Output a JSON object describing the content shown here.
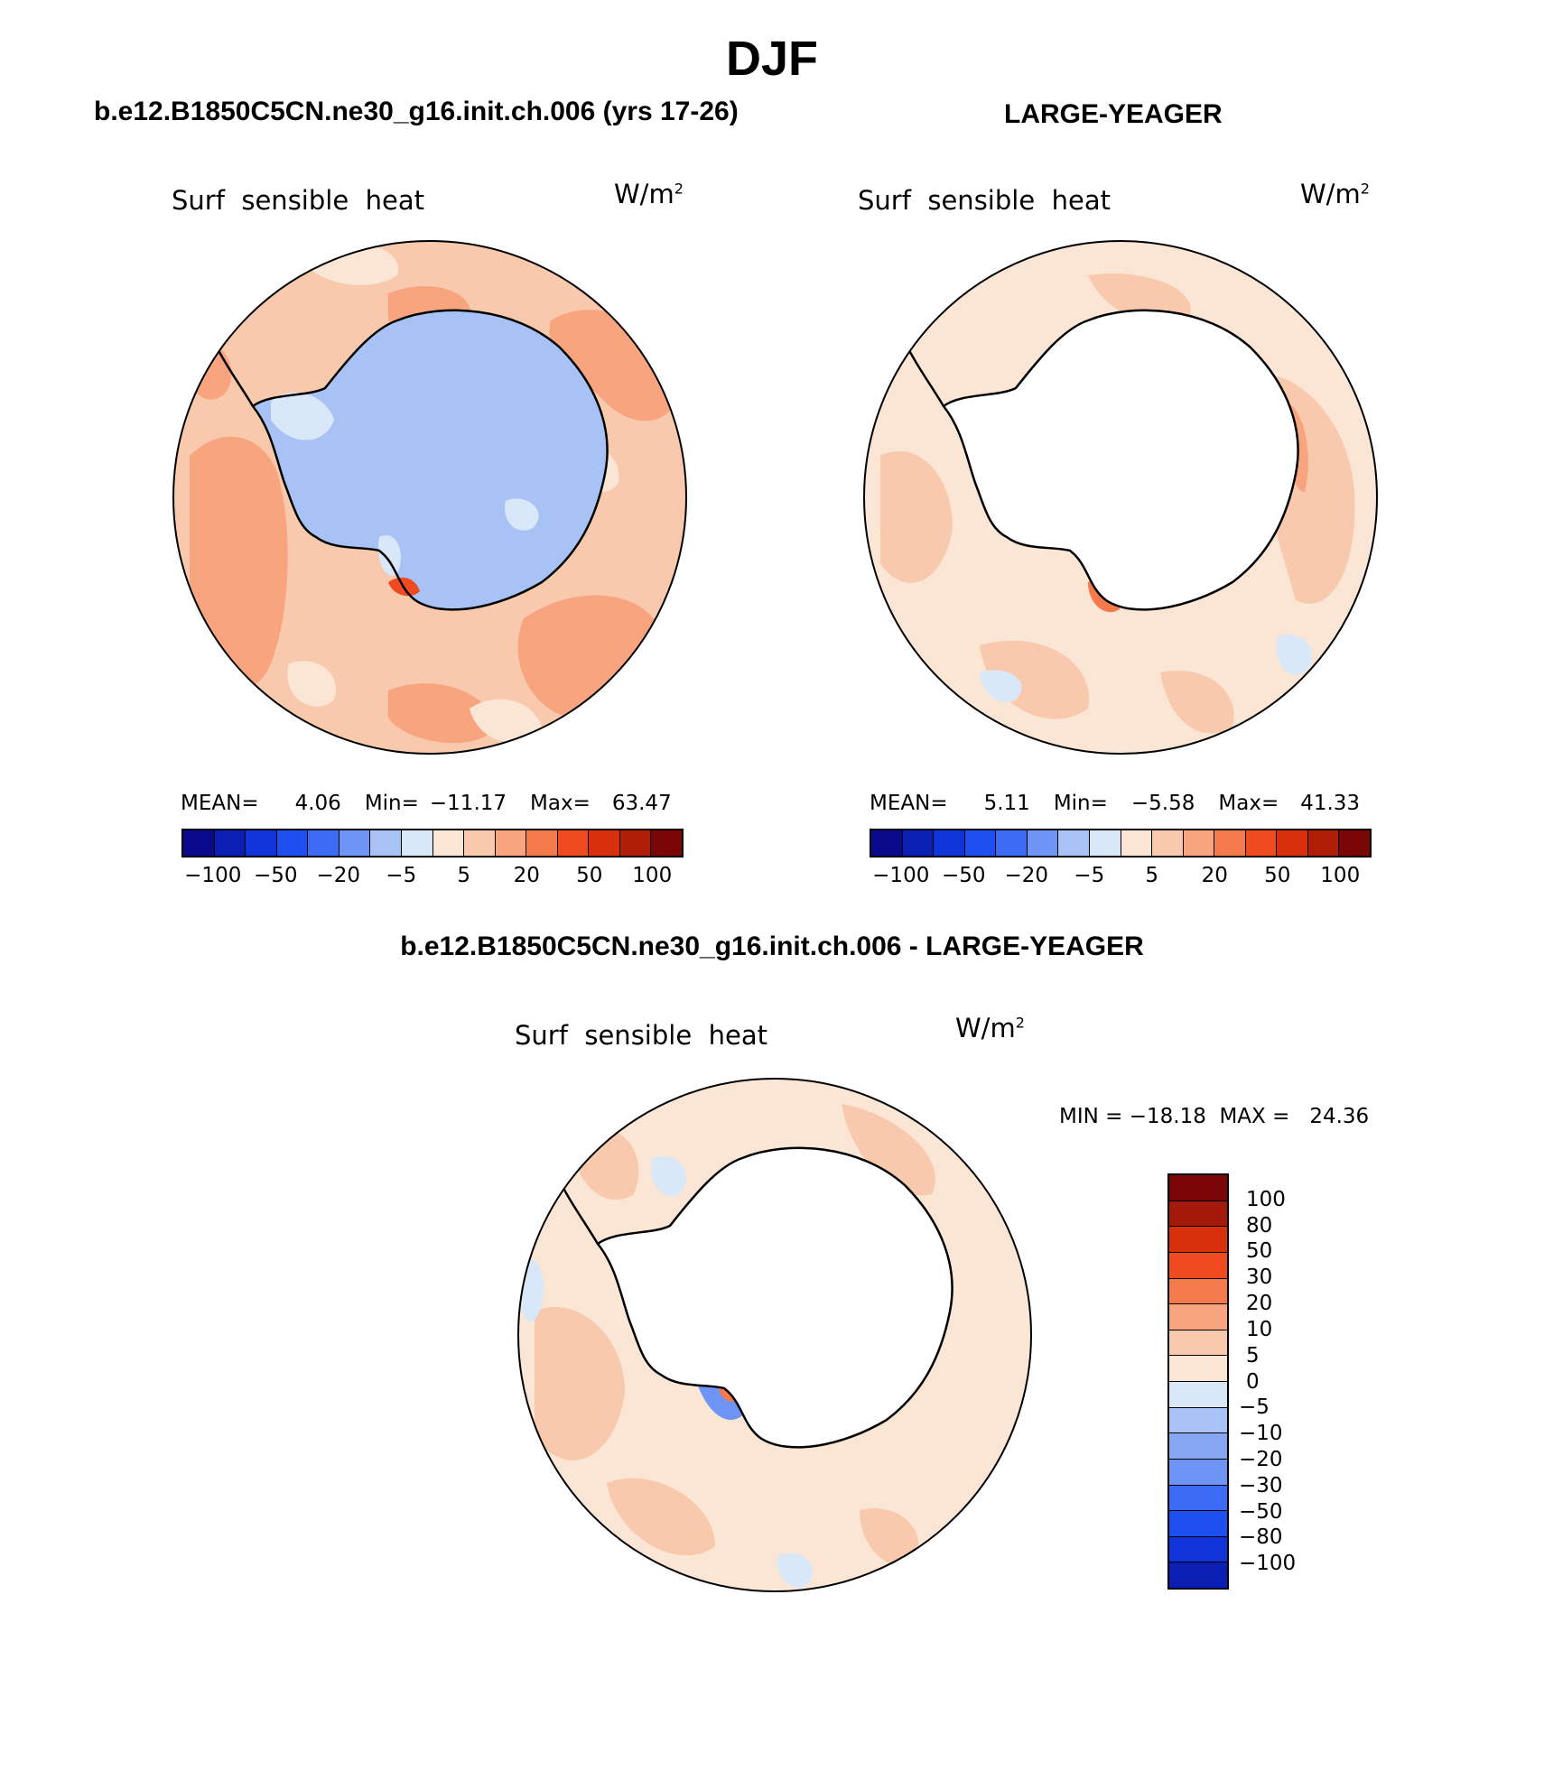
{
  "figure": {
    "title": "DJF"
  },
  "panels": [
    {
      "id": "p1",
      "header": "b.e12.B1850C5CN.ne30_g16.init.ch.006 (yrs 17-26)",
      "variable": "Surf  sensible  heat",
      "units_base": "W/m",
      "units_exp": "2",
      "stats": {
        "mean_label": "MEAN=",
        "mean": "4.06",
        "min_label": "Min=",
        "min": "−11.17",
        "max_label": "Max=",
        "max": "63.47"
      }
    },
    {
      "id": "p2",
      "header": "LARGE-YEAGER",
      "variable": "Surf  sensible  heat",
      "units_base": "W/m",
      "units_exp": "2",
      "stats": {
        "mean_label": "MEAN=",
        "mean": "5.11",
        "min_label": "Min=",
        "min": "−5.58",
        "max_label": "Max=",
        "max": "41.33"
      }
    },
    {
      "id": "p3",
      "header": "b.e12.B1850C5CN.ne30_g16.init.ch.006 - LARGE-YEAGER",
      "variable": "Surf  sensible  heat",
      "units_base": "W/m",
      "units_exp": "2",
      "minmax": "MIN = −18.18  MAX =   24.36"
    }
  ],
  "colorbar_horizontal": {
    "colors": [
      "#0a0a8c",
      "#0a1fb4",
      "#0f35d8",
      "#1e50f0",
      "#3c6cf5",
      "#6e95f5",
      "#a8c2f5",
      "#d8e8f8",
      "#fbe6d6",
      "#f8c9ac",
      "#f7a47f",
      "#f47a4c",
      "#f04b20",
      "#d8300c",
      "#b01e08",
      "#7a0606"
    ],
    "labels": [
      "−100",
      "−50",
      "−20",
      "−5",
      "5",
      "20",
      "50",
      "100"
    ]
  },
  "colorbar_vertical": {
    "colors": [
      "#7a0606",
      "#a31a0a",
      "#d8300c",
      "#f04b20",
      "#f47a4c",
      "#f7a47f",
      "#f8c9ac",
      "#fbe6d6",
      "#d8e8f8",
      "#a8c2f5",
      "#87a7f5",
      "#6e95f5",
      "#3c6cf5",
      "#1e50f0",
      "#0f35d8",
      "#0a1fb4"
    ],
    "labels": [
      "100",
      "80",
      "50",
      "30",
      "20",
      "10",
      "5",
      "0",
      "−5",
      "−10",
      "−20",
      "−30",
      "−50",
      "−80",
      "−100"
    ]
  }
}
